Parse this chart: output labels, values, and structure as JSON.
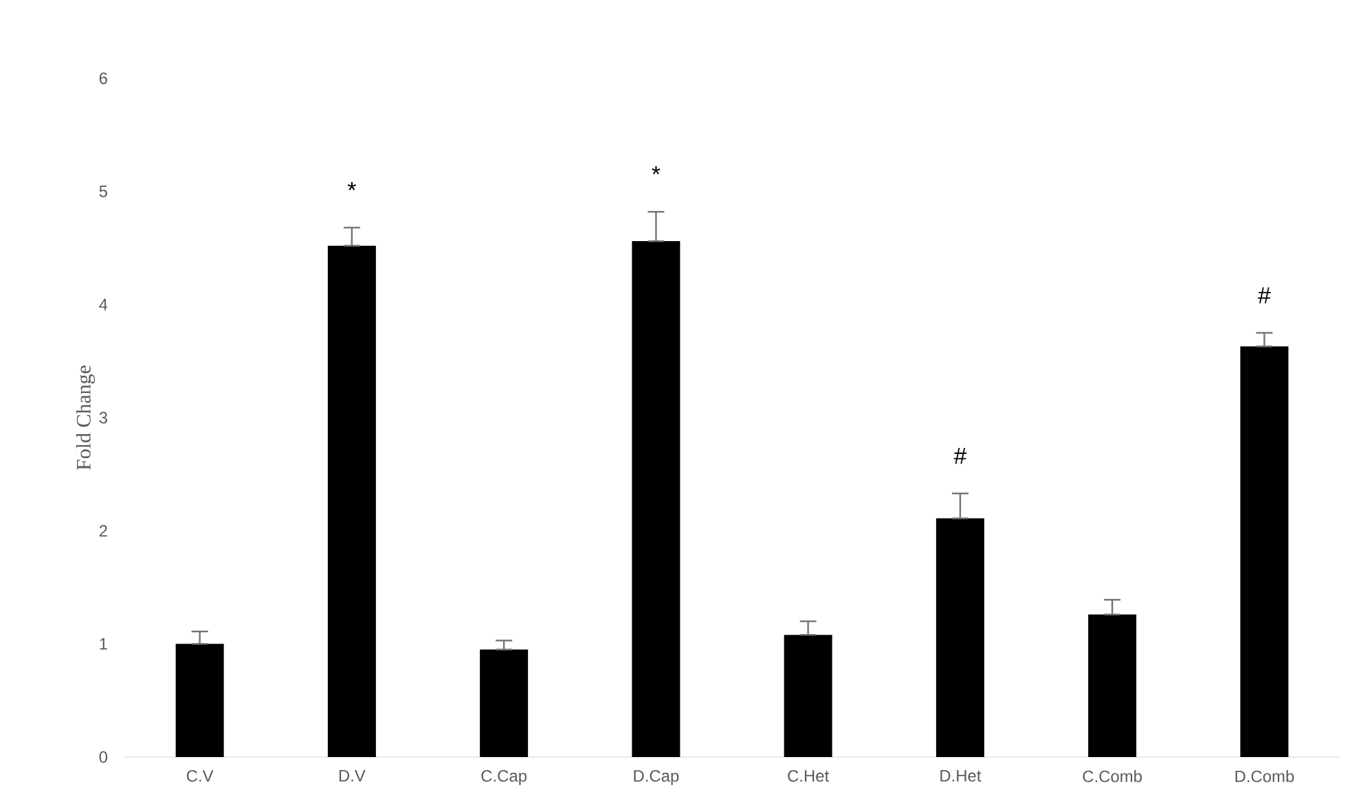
{
  "chart_data": {
    "type": "bar",
    "ylabel": "Fold Change",
    "categories": [
      "C.V",
      "D.V",
      "C.Cap",
      "D.Cap",
      "C.Het",
      "D.Het",
      "C.Comb",
      "D.Comb"
    ],
    "values": [
      1.0,
      4.52,
      0.95,
      4.56,
      1.08,
      2.11,
      1.26,
      3.63
    ],
    "errors": [
      [
        1.0,
        1.11
      ],
      [
        4.52,
        4.68
      ],
      [
        0.95,
        1.03
      ],
      [
        4.56,
        4.82
      ],
      [
        1.08,
        1.2
      ],
      [
        2.11,
        2.33
      ],
      [
        1.26,
        1.39
      ],
      [
        3.63,
        3.75
      ]
    ],
    "color": "#000000",
    "ylim": [
      0,
      6
    ],
    "yticks": [
      0,
      1,
      2,
      3,
      4,
      5,
      6
    ],
    "grid": false,
    "annotations": [
      {
        "text": "*",
        "x": "D.V",
        "y": 4.68
      },
      {
        "text": "*",
        "x": "D.Cap",
        "y": 4.82
      },
      {
        "text": "#",
        "x": "D.Het",
        "y": 2.33
      },
      {
        "text": "#",
        "x": "D.Comb",
        "y": 3.75
      }
    ]
  }
}
